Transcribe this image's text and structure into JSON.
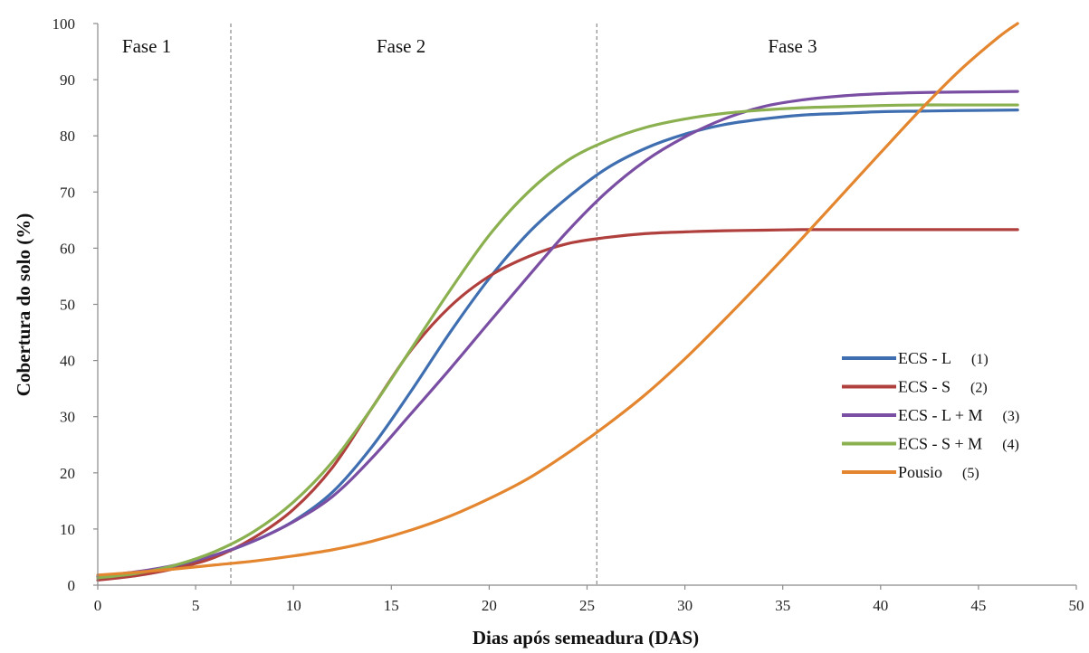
{
  "chart_data": {
    "type": "line",
    "xlabel": "Dias após semeadura (DAS)",
    "ylabel": "Cobertura do solo (%)",
    "xlim": [
      0,
      50
    ],
    "ylim": [
      0,
      100
    ],
    "xticks": [
      0,
      5,
      10,
      15,
      20,
      25,
      30,
      35,
      40,
      45,
      50
    ],
    "yticks": [
      0,
      10,
      20,
      30,
      40,
      50,
      60,
      70,
      80,
      90,
      100
    ],
    "grid": false,
    "legend_position": "right",
    "phase_boundaries": [
      6.8,
      25.5
    ],
    "phases": [
      {
        "label": "Fase 1",
        "x": 2.5
      },
      {
        "label": "Fase 2",
        "x": 15.5
      },
      {
        "label": "Fase 3",
        "x": 35.5
      }
    ],
    "series": [
      {
        "name": "ECS - L",
        "code": "(1)",
        "color": "#3F6FB0",
        "x": [
          0,
          2,
          4,
          6,
          8,
          10,
          12,
          14,
          16,
          18,
          20,
          22,
          24,
          26,
          28,
          30,
          32,
          34,
          36,
          38,
          40,
          42,
          44,
          47
        ],
        "y": [
          1.5,
          2.3,
          3.5,
          5.3,
          7.9,
          11.4,
          16.6,
          24.6,
          34.5,
          45.0,
          54.6,
          62.7,
          69.0,
          74.2,
          77.8,
          80.3,
          82.0,
          83.0,
          83.7,
          84.0,
          84.3,
          84.4,
          84.5,
          84.6
        ]
      },
      {
        "name": "ECS - S",
        "code": "(2)",
        "color": "#B0403D",
        "x": [
          0,
          2,
          4,
          6,
          8,
          10,
          12,
          14,
          16,
          18,
          20,
          22,
          24,
          26,
          28,
          30,
          32,
          34,
          36,
          38,
          40,
          42,
          44,
          47
        ],
        "y": [
          0.9,
          1.7,
          3.0,
          5.0,
          8.5,
          13.5,
          21.0,
          31.5,
          41.8,
          49.6,
          55.0,
          58.5,
          60.8,
          61.9,
          62.6,
          62.9,
          63.1,
          63.2,
          63.3,
          63.3,
          63.3,
          63.3,
          63.3,
          63.3
        ]
      },
      {
        "name": "ECS - L + M",
        "code": "(3)",
        "color": "#7A4FA3",
        "x": [
          0,
          2,
          4,
          6,
          8,
          10,
          12,
          14,
          16,
          18,
          20,
          22,
          24,
          26,
          28,
          30,
          32,
          34,
          36,
          38,
          40,
          42,
          44,
          47
        ],
        "y": [
          1.6,
          2.4,
          3.6,
          5.4,
          7.9,
          11.3,
          15.8,
          22.6,
          30.5,
          38.5,
          46.8,
          55.0,
          63.0,
          70.0,
          75.6,
          79.8,
          83.0,
          85.2,
          86.4,
          87.1,
          87.5,
          87.7,
          87.8,
          87.9
        ]
      },
      {
        "name": "ECS - S + M",
        "code": "(4)",
        "color": "#8BB04F",
        "x": [
          0,
          2,
          4,
          6,
          8,
          10,
          12,
          14,
          16,
          18,
          20,
          22,
          24,
          26,
          28,
          30,
          32,
          34,
          36,
          38,
          40,
          42,
          44,
          47
        ],
        "y": [
          1.3,
          2.1,
          3.6,
          6.0,
          9.6,
          14.8,
          22.0,
          31.5,
          42.0,
          52.5,
          62.3,
          70.0,
          75.6,
          79.1,
          81.5,
          83.0,
          84.0,
          84.6,
          85.0,
          85.2,
          85.4,
          85.5,
          85.5,
          85.5
        ]
      },
      {
        "name": "Pousio",
        "code": "(5)",
        "color": "#E3862F",
        "x": [
          0,
          2,
          4,
          6,
          8,
          10,
          12,
          14,
          16,
          18,
          20,
          22,
          24,
          26,
          28,
          30,
          32,
          34,
          36,
          38,
          40,
          42,
          44,
          46,
          47
        ],
        "y": [
          1.8,
          2.3,
          2.9,
          3.6,
          4.3,
          5.2,
          6.3,
          7.8,
          9.8,
          12.3,
          15.4,
          19.0,
          23.5,
          28.5,
          34.0,
          40.3,
          47.2,
          54.4,
          61.8,
          69.4,
          77.0,
          84.5,
          91.5,
          97.5,
          100.0
        ]
      }
    ]
  }
}
